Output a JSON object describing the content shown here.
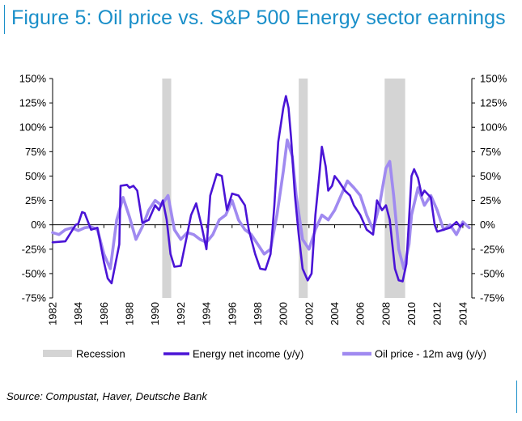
{
  "title": "Figure 5: Oil price vs. S&P 500 Energy sector earnings",
  "source": "Source: Compustat, Haver, Deutsche Bank",
  "colors": {
    "title": "#1a8fc9",
    "energy": "#4a14d6",
    "oil": "#a08af0",
    "recession": "#d4d4d4"
  },
  "chart_data": {
    "type": "line",
    "title": "Figure 5: Oil price vs. S&P 500 Energy sector earnings",
    "xlabel": "",
    "ylabel": "",
    "xlim": [
      1982,
      2014.7
    ],
    "ylim": [
      -75,
      150
    ],
    "y_ticks": [
      "150%",
      "125%",
      "100%",
      "75%",
      "50%",
      "25%",
      "0%",
      "-25%",
      "-50%",
      "-75%"
    ],
    "y_tick_values": [
      150,
      125,
      100,
      75,
      50,
      25,
      0,
      -25,
      -50,
      -75
    ],
    "x_ticks": [
      "1982",
      "1984",
      "1986",
      "1988",
      "1990",
      "1992",
      "1994",
      "1996",
      "1998",
      "2000",
      "2002",
      "2004",
      "2006",
      "2008",
      "2010",
      "2012",
      "2014"
    ],
    "x_tick_values": [
      1982,
      1984,
      1986,
      1988,
      1990,
      1992,
      1994,
      1996,
      1998,
      2000,
      2002,
      2004,
      2006,
      2008,
      2010,
      2012,
      2014
    ],
    "recessions": [
      {
        "label": "Recession",
        "start": 1990.55,
        "end": 1991.25
      },
      {
        "label": "Recession",
        "start": 2001.2,
        "end": 2001.9
      },
      {
        "label": "Recession",
        "start": 2007.9,
        "end": 2009.5
      }
    ],
    "legend": [
      "Recession",
      "Energy net income (y/y)",
      "Oil price - 12m avg (y/y)"
    ],
    "series": [
      {
        "name": "Energy net income (y/y)",
        "x": [
          1982,
          1983,
          1983.8,
          1984,
          1984.3,
          1984.5,
          1985,
          1985.5,
          1986,
          1986.3,
          1986.6,
          1987.2,
          1987.3,
          1987.8,
          1988,
          1988.3,
          1988.6,
          1989,
          1989.5,
          1990,
          1990.3,
          1990.6,
          1990.9,
          1991.2,
          1991.5,
          1992,
          1992.5,
          1992.8,
          1993.2,
          1993.6,
          1994,
          1994.3,
          1994.8,
          1995.2,
          1995.6,
          1996,
          1996.5,
          1997,
          1997.3,
          1997.8,
          1998.2,
          1998.6,
          1999,
          1999.3,
          1999.6,
          2000,
          2000.2,
          2000.4,
          2000.6,
          2000.9,
          2001.2,
          2001.5,
          2001.9,
          2002.2,
          2002.5,
          2002.8,
          2003,
          2003.3,
          2003.5,
          2003.8,
          2004,
          2004.3,
          2004.8,
          2005.2,
          2005.5,
          2006,
          2006.5,
          2007,
          2007.3,
          2007.7,
          2008,
          2008.3,
          2008.7,
          2009,
          2009.3,
          2009.6,
          2010,
          2010.2,
          2010.5,
          2010.8,
          2011,
          2011.5,
          2011.8,
          2012,
          2012.5,
          2013,
          2013.5,
          2013.8,
          2014
        ],
        "values": [
          -18,
          -17,
          0,
          1,
          13,
          12,
          -5,
          -3,
          -38,
          -55,
          -60,
          -20,
          40,
          41,
          38,
          40,
          35,
          2,
          5,
          20,
          15,
          25,
          5,
          -30,
          -43,
          -42,
          -10,
          10,
          22,
          0,
          -25,
          30,
          52,
          50,
          15,
          32,
          30,
          20,
          -5,
          -30,
          -45,
          -46,
          -30,
          20,
          85,
          120,
          132,
          120,
          90,
          30,
          -10,
          -45,
          -57,
          -50,
          10,
          50,
          80,
          60,
          35,
          40,
          50,
          45,
          35,
          30,
          20,
          10,
          -5,
          -10,
          25,
          15,
          20,
          5,
          -45,
          -57,
          -58,
          -40,
          50,
          57,
          48,
          30,
          35,
          28,
          0,
          -7,
          -5,
          -3,
          3,
          -2,
          1
        ]
      },
      {
        "name": "Oil price - 12m avg (y/y)",
        "x": [
          1982,
          1982.5,
          1983,
          1983.5,
          1984,
          1984.5,
          1985,
          1985.5,
          1986,
          1986.5,
          1987,
          1987.5,
          1988,
          1988.5,
          1989,
          1989.5,
          1990,
          1990.5,
          1991,
          1991.5,
          1992,
          1992.5,
          1993,
          1993.5,
          1994,
          1994.5,
          1995,
          1995.5,
          1996,
          1996.5,
          1997,
          1997.5,
          1998,
          1998.5,
          1999,
          1999.5,
          2000,
          2000.3,
          2000.7,
          2001,
          2001.5,
          2002,
          2002.5,
          2003,
          2003.5,
          2004,
          2004.5,
          2005,
          2005.5,
          2006,
          2006.5,
          2007,
          2007.5,
          2008,
          2008.3,
          2008.6,
          2009,
          2009.4,
          2009.8,
          2010,
          2010.5,
          2011,
          2011.5,
          2012,
          2012.5,
          2013,
          2013.5,
          2014,
          2014.5
        ],
        "values": [
          -8,
          -10,
          -5,
          -3,
          -6,
          -3,
          -2,
          -5,
          -30,
          -45,
          5,
          28,
          8,
          -15,
          -2,
          15,
          25,
          20,
          30,
          -5,
          -15,
          -8,
          -10,
          -15,
          -18,
          -10,
          5,
          10,
          25,
          5,
          -5,
          -10,
          -20,
          -30,
          -25,
          10,
          55,
          87,
          70,
          30,
          -15,
          -25,
          -5,
          10,
          5,
          15,
          30,
          45,
          38,
          30,
          10,
          -5,
          20,
          58,
          65,
          30,
          -25,
          -45,
          -20,
          10,
          38,
          20,
          30,
          15,
          -5,
          0,
          -10,
          3,
          -3
        ]
      }
    ]
  }
}
